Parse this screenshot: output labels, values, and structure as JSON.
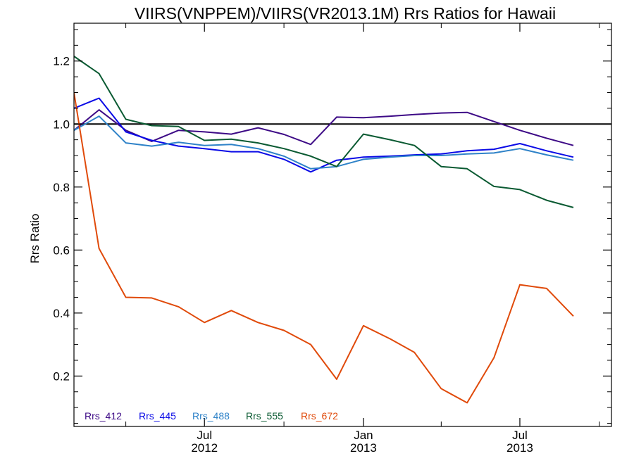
{
  "chart_data": {
    "type": "line",
    "title": "VIIRS(VNPPEM)/VIIRS(VR2013.1M)  Rrs Ratios for Hawaii",
    "ylabel": "Rrs Ratio",
    "xlabel": "",
    "xlim": [
      "2012-02-01",
      "2013-10-15"
    ],
    "ylim": [
      0.04,
      1.32
    ],
    "yticks": [
      0.2,
      0.4,
      0.6,
      0.8,
      1.0,
      1.2
    ],
    "ytick_labels": [
      "0.2",
      "0.4",
      "0.6",
      "0.8",
      "1.0",
      "1.2"
    ],
    "xticks_major": [
      {
        "date": "2012-07-01",
        "line1": "Jul",
        "line2": "2012"
      },
      {
        "date": "2013-01-01",
        "line1": "Jan",
        "line2": "2013"
      },
      {
        "date": "2013-07-01",
        "line1": "Jul",
        "line2": "2013"
      }
    ],
    "xticks_minor": [
      "2012-04-01",
      "2012-10-01",
      "2013-04-01",
      "2013-10-01"
    ],
    "reference_line": {
      "y": 1.0,
      "color": "#000000"
    },
    "x": [
      "2012-02-01",
      "2012-03-01",
      "2012-04-01",
      "2012-05-01",
      "2012-06-01",
      "2012-07-01",
      "2012-08-01",
      "2012-09-01",
      "2012-10-01",
      "2012-11-01",
      "2012-12-01",
      "2013-01-01",
      "2013-02-01",
      "2013-03-01",
      "2013-04-01",
      "2013-05-01",
      "2013-06-01",
      "2013-07-01",
      "2013-08-01",
      "2013-09-01",
      "2013-10-01"
    ],
    "series": [
      {
        "name": "Rrs_412",
        "color": "#3d0a86",
        "values": [
          0.98,
          1.045,
          0.98,
          0.945,
          0.98,
          0.975,
          0.968,
          0.988,
          0.967,
          0.935,
          1.022,
          1.02,
          1.025,
          1.03,
          1.035,
          1.037,
          1.008,
          0.98,
          0.955,
          0.932,
          null
        ]
      },
      {
        "name": "Rrs_445",
        "color": "#0a0ae6",
        "values": [
          1.05,
          1.082,
          0.975,
          0.948,
          0.93,
          0.922,
          0.912,
          0.912,
          0.888,
          0.848,
          0.885,
          0.895,
          0.898,
          0.902,
          0.905,
          0.915,
          0.92,
          0.938,
          0.915,
          0.895,
          null
        ]
      },
      {
        "name": "Rrs_488",
        "color": "#2e82c8",
        "values": [
          0.98,
          1.025,
          0.94,
          0.93,
          0.942,
          0.932,
          0.935,
          0.922,
          0.898,
          0.858,
          0.865,
          0.888,
          0.895,
          0.9,
          0.9,
          0.905,
          0.908,
          0.922,
          0.902,
          0.885,
          null
        ]
      },
      {
        "name": "Rrs_555",
        "color": "#0a5a32",
        "values": [
          1.215,
          1.16,
          1.015,
          0.995,
          0.992,
          0.948,
          0.952,
          0.94,
          0.922,
          0.898,
          0.865,
          0.968,
          0.95,
          0.932,
          0.865,
          0.858,
          0.802,
          0.792,
          0.758,
          0.735,
          null
        ]
      },
      {
        "name": "Rrs_672",
        "color": "#e04a0a",
        "values": [
          1.1,
          0.605,
          0.45,
          0.448,
          0.42,
          0.37,
          0.408,
          0.37,
          0.345,
          0.3,
          0.19,
          0.36,
          0.318,
          0.275,
          0.16,
          0.115,
          0.258,
          0.49,
          0.478,
          0.39,
          null
        ]
      }
    ],
    "legend_position": "bottom-left",
    "grid": false
  }
}
